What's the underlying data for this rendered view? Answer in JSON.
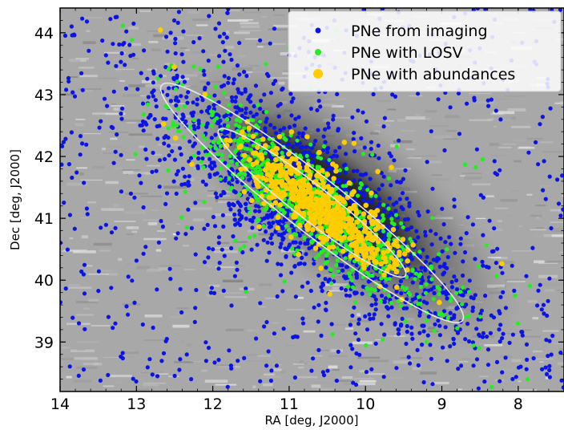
{
  "chart_data": {
    "type": "scatter",
    "title": "",
    "xlabel": "RA [deg, J2000]",
    "ylabel": "Dec [deg, J2000]",
    "xlim": [
      14.0,
      7.4
    ],
    "ylim": [
      38.2,
      44.4
    ],
    "x_ticks": [
      "14",
      "13",
      "12",
      "11",
      "10",
      "9",
      "8"
    ],
    "y_ticks": [
      "39",
      "40",
      "41",
      "42",
      "43",
      "44"
    ],
    "grid": false,
    "legend_position": "top-right",
    "background": "grayscale galaxy image (M31), darker toward the disk center",
    "ellipses": [
      {
        "center_ra": 10.7,
        "center_dec": 41.25,
        "semi_major_deg": 2.5,
        "semi_minor_deg": 0.45,
        "position_angle_deg": 38
      },
      {
        "center_ra": 10.7,
        "center_dec": 41.25,
        "semi_major_deg": 1.55,
        "semi_minor_deg": 0.28,
        "position_angle_deg": 38
      }
    ],
    "series": [
      {
        "name": "PNe from imaging",
        "color": "#0a14e6",
        "marker_size": 2.6,
        "distribution": {
          "center_ra": 10.7,
          "center_dec": 41.25,
          "sigma_major_deg": 1.35,
          "sigma_minor_deg": 0.55,
          "position_angle_deg": 38,
          "count_core": 1500,
          "count_halo": 550
        }
      },
      {
        "name": "PNe with LOSV",
        "color": "#22ee22",
        "marker_size": 2.6,
        "distribution": {
          "center_ra": 10.65,
          "center_dec": 41.2,
          "sigma_major_deg": 0.95,
          "sigma_minor_deg": 0.3,
          "position_angle_deg": 38,
          "count_core": 900,
          "count_halo": 80
        }
      },
      {
        "name": "PNe with abundances",
        "color": "#ffcc00",
        "marker_size": 3.3,
        "distribution": {
          "center_ra": 10.6,
          "center_dec": 41.2,
          "sigma_major_deg": 0.6,
          "sigma_minor_deg": 0.2,
          "position_angle_deg": 38,
          "count_core": 520,
          "count_halo": 60
        }
      }
    ]
  }
}
